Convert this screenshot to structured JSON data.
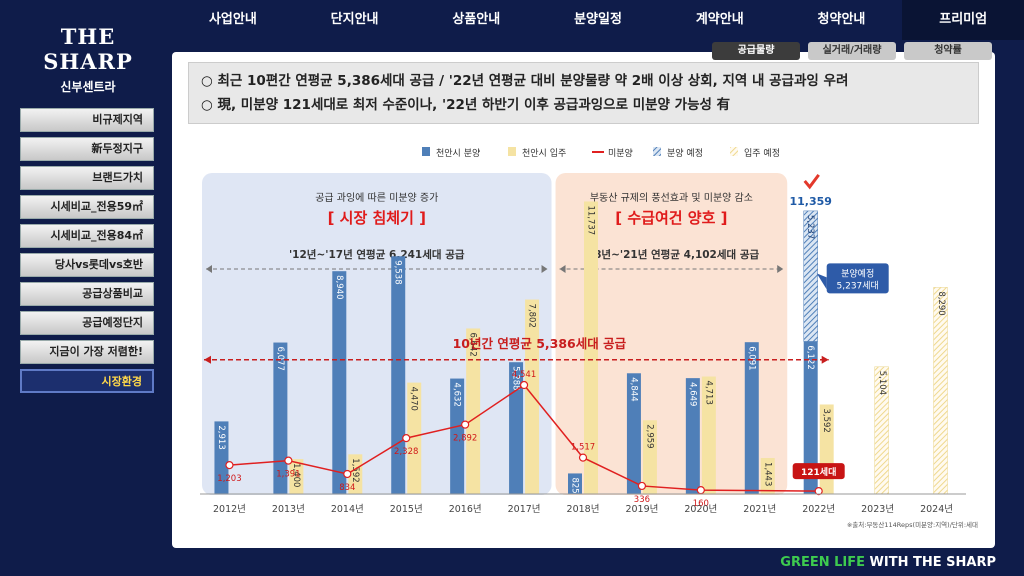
{
  "brand": {
    "name": "THE SHARP",
    "sub": "신부센트라"
  },
  "nav": [
    {
      "label": "사업안내",
      "active": false
    },
    {
      "label": "단지안내",
      "active": false
    },
    {
      "label": "상품안내",
      "active": false
    },
    {
      "label": "분양일정",
      "active": false
    },
    {
      "label": "계약안내",
      "active": false
    },
    {
      "label": "청약안내",
      "active": false
    },
    {
      "label": "프리미엄",
      "active": true
    }
  ],
  "subtabs": [
    {
      "label": "공급물량",
      "active": true
    },
    {
      "label": "실거래/거래량",
      "active": false
    },
    {
      "label": "청약률",
      "active": false
    }
  ],
  "sidebar": [
    {
      "label": "비규제지역",
      "active": false
    },
    {
      "label": "新두정지구",
      "active": false
    },
    {
      "label": "브랜드가치",
      "active": false
    },
    {
      "label": "시세비교_전용59㎡",
      "active": false
    },
    {
      "label": "시세비교_전용84㎡",
      "active": false
    },
    {
      "label": "당사vs롯데vs호반",
      "active": false
    },
    {
      "label": "공급상품비교",
      "active": false
    },
    {
      "label": "공급예정단지",
      "active": false
    },
    {
      "label": "지금이 가장 저렴한!",
      "active": false
    },
    {
      "label": "시장환경",
      "active": true
    }
  ],
  "notice": {
    "line1": "○ 최근 10편간 연평균 5,386세대 공급 / '22년 연평균 대비 분양물량 약 2배 이상 상회, 지역 내 공급과잉 우려",
    "line2": "○ 現, 미분양 121세대로 최저 수준이나, '22년 하반기 이후 공급과잉으로 미분양 가능성 有"
  },
  "footer": {
    "green": "GREEN LIFE",
    "rest": "WITH THE SHARP"
  },
  "chart_data": {
    "type": "bar",
    "categories": [
      "2012년",
      "2013년",
      "2014년",
      "2015년",
      "2016년",
      "2017년",
      "2018년",
      "2019년",
      "2020년",
      "2021년",
      "2022년",
      "2023년",
      "2024년"
    ],
    "series": [
      {
        "name": "천안시 분양",
        "color": "#4f7fb8",
        "values": [
          2913,
          6077,
          8940,
          9538,
          4632,
          5288,
          825,
          4844,
          4649,
          6091,
          6122,
          null,
          null
        ]
      },
      {
        "name": "천안시 입주",
        "color": "#f5e3a3",
        "values": [
          null,
          1400,
          1592,
          4470,
          6642,
          7802,
          11737,
          2959,
          4713,
          1443,
          3592,
          null,
          null
        ]
      },
      {
        "name": "분양 예정",
        "color": "#4f7fb8",
        "pattern": "hatch",
        "values": [
          null,
          null,
          null,
          null,
          null,
          null,
          null,
          null,
          null,
          null,
          5237,
          null,
          null
        ]
      },
      {
        "name": "입주 예정",
        "color": "#f5e3a3",
        "pattern": "hatch",
        "values": [
          null,
          null,
          null,
          null,
          null,
          null,
          null,
          null,
          null,
          null,
          null,
          5104,
          8290
        ]
      },
      {
        "name": "미분양",
        "color": "#e02020",
        "type": "line",
        "values": [
          1203,
          1391,
          834,
          2328,
          2892,
          4541,
          1517,
          336,
          160,
          null,
          121,
          null,
          null
        ]
      }
    ],
    "bar_labels": {
      "천안시 분양": [
        "2,913",
        "6,077",
        "8,940",
        "9,538",
        "4,632",
        "5,288",
        "825",
        "4,844",
        "4,649",
        "6,091",
        "6,122",
        "",
        ""
      ],
      "천안시 입주": [
        "",
        "1,400",
        "1,592",
        "4,470",
        "6,642",
        "7,802",
        "11,737",
        "2,959",
        "4,713",
        "1,443",
        "3,592",
        "",
        ""
      ],
      "분양 예정": [
        "",
        "",
        "",
        "",
        "",
        "",
        "",
        "",
        "",
        "",
        "5,237",
        "",
        ""
      ],
      "입주 예정": [
        "",
        "",
        "",
        "",
        "",
        "",
        "",
        "",
        "",
        "",
        "",
        "5,104",
        "8,290"
      ],
      "미분양": [
        "1,203",
        "1,391",
        "834",
        "2,328",
        "2,892",
        "4,541",
        "1,517",
        "336",
        "160",
        "",
        "",
        "",
        ""
      ]
    },
    "ylim": [
      0,
      13000
    ],
    "total_2022_label": "11,359",
    "callout_2022": [
      "분양예정",
      "5,237세대"
    ],
    "unsold_2022_label": "121세대",
    "average_label": "10년간 연평균 5,386세대 공급",
    "average_value": 5386,
    "regions": [
      {
        "range": [
          "2012년",
          "2017년"
        ],
        "subtitle": "공급 과잉에 따른 미분양 증가",
        "title": "[ 시장 침체기 ]",
        "span_label": "'12년~'17년 연평균 6,241세대 공급",
        "fill": "#dfe6f4"
      },
      {
        "range": [
          "2018년",
          "2021년"
        ],
        "subtitle": "부동산 규제의 풍선효과 및 미분양 감소",
        "title": "[ 수급여건 양호 ]",
        "span_label": "'18년~'21년 연평균 4,102세대 공급",
        "fill": "#fbe3d4"
      }
    ],
    "source": "※출처:부동산114Reps(미분양:지역)/단위:세대",
    "legend_position": "top-center"
  }
}
